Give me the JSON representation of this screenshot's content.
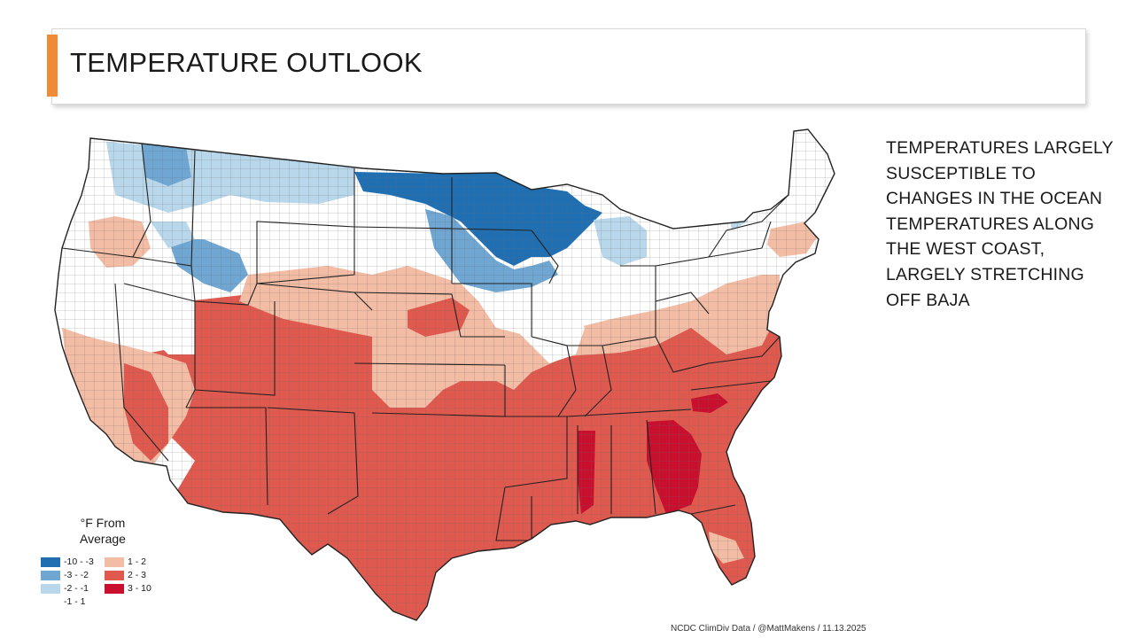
{
  "title": "TEMPERATURE OUTLOOK",
  "side_text": "TEMPERATURES LARGELY SUSCEPTIBLE TO CHANGES IN THE OCEAN TEMPERATURES ALONG THE WEST COAST, LARGELY STRETCHING OFF BAJA",
  "legend": {
    "title_line1": "°F From",
    "title_line2": "Average",
    "items": [
      {
        "label": "-10 - -3",
        "color": "#1f6fb2"
      },
      {
        "label": "-3 - -2",
        "color": "#6fa6d2"
      },
      {
        "label": "-2 - -1",
        "color": "#b9d7eb"
      },
      {
        "label": "-1 - 1",
        "color": "#ffffff"
      },
      {
        "label": "1 - 2",
        "color": "#f3bca4"
      },
      {
        "label": "2 - 3",
        "color": "#e0594f"
      },
      {
        "label": "3 - 10",
        "color": "#c8102e"
      }
    ]
  },
  "credit": "NCDC ClimDiv Data / @MattMakens / 11.13.2025",
  "colors": {
    "accent": "#f08a35",
    "cold_strong": "#1f6fb2",
    "cold_mid": "#6fa6d2",
    "cold_light": "#b9d7eb",
    "neutral": "#ffffff",
    "warm_light": "#f3bca4",
    "warm_mid": "#e0594f",
    "warm_strong": "#c8102e"
  }
}
